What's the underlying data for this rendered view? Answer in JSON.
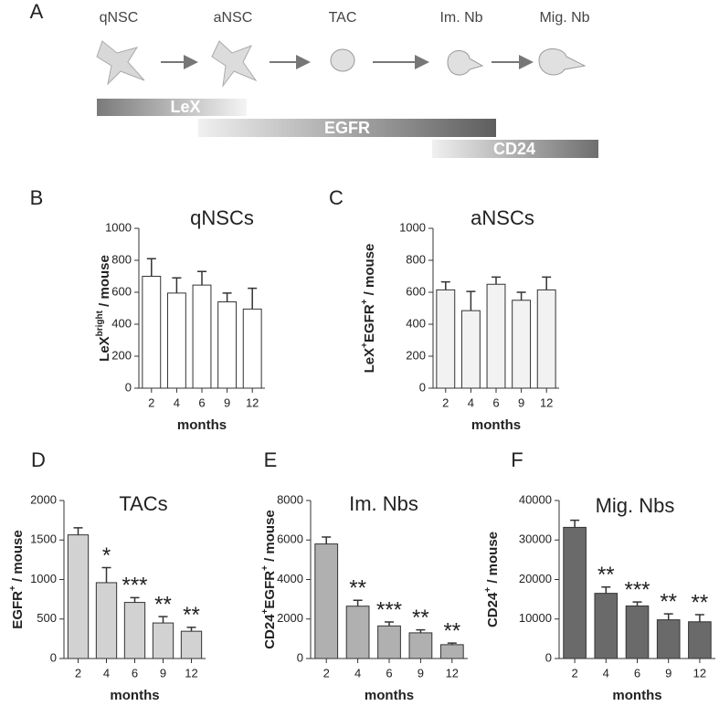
{
  "diagram": {
    "panel_label": "A",
    "stages": [
      "qNSC",
      "aNSC",
      "TAC",
      "Im. Nb",
      "Mig. Nb"
    ],
    "markers": [
      "LeX",
      "EGFR",
      "CD24"
    ]
  },
  "chart_data": [
    {
      "type": "bar",
      "panel_label": "B",
      "title": "qNSCs",
      "ylabel": [
        {
          "text": "LeX"
        },
        {
          "text": "bright",
          "sup": true
        },
        {
          "text": " / mouse"
        }
      ],
      "xlabel": "months",
      "categories": [
        "2",
        "4",
        "6",
        "9",
        "12"
      ],
      "values": [
        700,
        595,
        645,
        540,
        495
      ],
      "errors": [
        110,
        95,
        85,
        55,
        130
      ],
      "color": "#ffffff",
      "ylim": [
        0,
        1000
      ],
      "yticks": [
        0,
        200,
        400,
        600,
        800,
        1000
      ]
    },
    {
      "type": "bar",
      "panel_label": "C",
      "title": "aNSCs",
      "ylabel": [
        {
          "text": "LeX"
        },
        {
          "text": "+",
          "sup": true
        },
        {
          "text": "EGFR"
        },
        {
          "text": "+",
          "sup": true
        },
        {
          "text": " / mouse"
        }
      ],
      "xlabel": "months",
      "categories": [
        "2",
        "4",
        "6",
        "9",
        "12"
      ],
      "values": [
        615,
        485,
        650,
        550,
        615
      ],
      "errors": [
        50,
        120,
        45,
        50,
        80
      ],
      "color": "#f2f2f2",
      "ylim": [
        0,
        1000
      ],
      "yticks": [
        0,
        200,
        400,
        600,
        800,
        1000
      ]
    },
    {
      "type": "bar",
      "panel_label": "D",
      "title": "TACs",
      "ylabel": [
        {
          "text": "EGFR"
        },
        {
          "text": "+",
          "sup": true
        },
        {
          "text": " / mouse"
        }
      ],
      "xlabel": "months",
      "categories": [
        "2",
        "4",
        "6",
        "9",
        "12"
      ],
      "values": [
        1565,
        960,
        710,
        450,
        345
      ],
      "errors": [
        90,
        190,
        60,
        80,
        50
      ],
      "significance": [
        null,
        "*",
        "***",
        "**",
        "**"
      ],
      "color": "#d2d2d2",
      "ylim": [
        0,
        2000
      ],
      "yticks": [
        0,
        500,
        1000,
        1500,
        2000
      ]
    },
    {
      "type": "bar",
      "panel_label": "E",
      "title": "Im. Nbs",
      "ylabel": [
        {
          "text": "CD24"
        },
        {
          "text": "+",
          "sup": true
        },
        {
          "text": "EGFR"
        },
        {
          "text": "+",
          "sup": true
        },
        {
          "text": " / mouse"
        }
      ],
      "xlabel": "months",
      "categories": [
        "2",
        "4",
        "6",
        "9",
        "12"
      ],
      "values": [
        5800,
        2650,
        1650,
        1300,
        700
      ],
      "errors": [
        350,
        300,
        200,
        150,
        80
      ],
      "significance": [
        null,
        "**",
        "***",
        "**",
        "**"
      ],
      "color": "#b0b0b0",
      "ylim": [
        0,
        8000
      ],
      "yticks": [
        0,
        2000,
        4000,
        6000,
        8000
      ]
    },
    {
      "type": "bar",
      "panel_label": "F",
      "title": "Mig. Nbs",
      "ylabel": [
        {
          "text": "CD24"
        },
        {
          "text": "+",
          "sup": true
        },
        {
          "text": " / mouse"
        }
      ],
      "xlabel": "months",
      "categories": [
        "2",
        "4",
        "6",
        "9",
        "12"
      ],
      "values": [
        33200,
        16500,
        13300,
        9800,
        9300
      ],
      "errors": [
        1800,
        1600,
        1000,
        1500,
        1800
      ],
      "significance": [
        null,
        "**",
        "***",
        "**",
        "**"
      ],
      "color": "#6a6a6a",
      "ylim": [
        0,
        40000
      ],
      "yticks": [
        0,
        10000,
        20000,
        30000,
        40000
      ]
    }
  ]
}
